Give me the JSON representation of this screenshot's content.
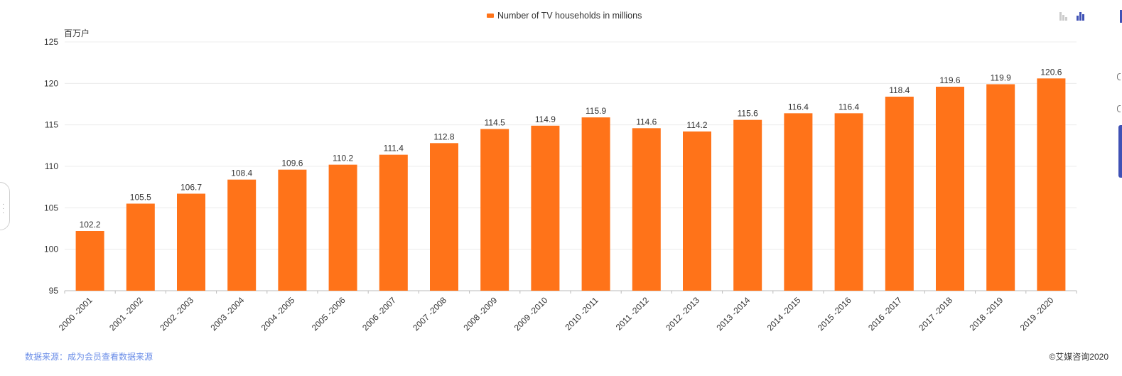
{
  "legend": {
    "label": "Number of TV households in millions",
    "color": "#ff7319"
  },
  "unit_label": "百万户",
  "footer": {
    "source": "数据来源：成为会员查看数据来源",
    "copyright": "©艾媒咨询2020"
  },
  "toolbar": {
    "icons": [
      "bar-chart-icon-inactive",
      "bar-chart-icon-active"
    ]
  },
  "chart_data": {
    "type": "bar",
    "categories": [
      "2000 -2001",
      "2001 -2002",
      "2002 -2003",
      "2003 -2004",
      "2004 -2005",
      "2005 -2006",
      "2006 -2007",
      "2007 -2008",
      "2008 -2009",
      "2009 -2010",
      "2010 -2011",
      "2011 -2012",
      "2012 -2013",
      "2013 -2014",
      "2014 -2015",
      "2015 -2016",
      "2016 -2017",
      "2017 -2018",
      "2018 -2019",
      "2019 -2020"
    ],
    "series": [
      {
        "name": "Number of TV households in millions",
        "values": [
          102.2,
          105.5,
          106.7,
          108.4,
          109.6,
          110.2,
          111.4,
          112.8,
          114.5,
          114.9,
          115.9,
          114.6,
          114.2,
          115.6,
          116.4,
          116.4,
          118.4,
          119.6,
          119.9,
          120.6
        ]
      }
    ],
    "ylim": [
      95,
      125
    ],
    "yticks": [
      95,
      100,
      105,
      110,
      115,
      120,
      125
    ],
    "grid": true,
    "legend_position": "top-center",
    "bar_color": "#ff7319",
    "data_labels": true
  }
}
